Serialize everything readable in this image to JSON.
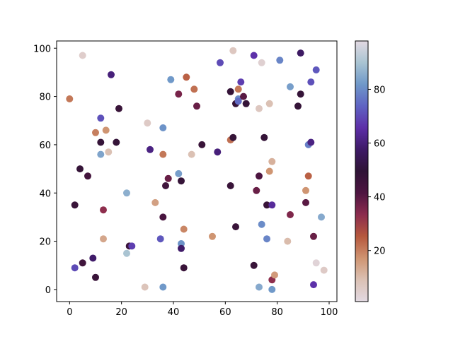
{
  "chart_data": {
    "type": "scatter",
    "title": "",
    "xlabel": "",
    "ylabel": "",
    "xlim": [
      -5,
      103
    ],
    "ylim": [
      -5,
      103
    ],
    "x_ticks": [
      "0",
      "20",
      "40",
      "60",
      "80",
      "100"
    ],
    "y_ticks": [
      "0",
      "20",
      "40",
      "60",
      "80",
      "100"
    ],
    "grid": false,
    "colormap": "twilight_shifted",
    "colorbar": {
      "range": [
        1,
        98
      ],
      "ticks": [
        "20",
        "40",
        "60",
        "80"
      ],
      "stops": [
        "#e2d9e2",
        "#dbc1b4",
        "#cf9471",
        "#b6583d",
        "#8c2c4e",
        "#4e1541",
        "#2f1436",
        "#3e1a66",
        "#5d2fa8",
        "#5f63c3",
        "#6f98c9",
        "#a9c4d2",
        "#e2d9e2"
      ]
    },
    "points": [
      {
        "x": 0,
        "y": 79,
        "c": 21
      },
      {
        "x": 2,
        "y": 35,
        "c": 47
      },
      {
        "x": 2,
        "y": 9,
        "c": 70
      },
      {
        "x": 4,
        "y": 50,
        "c": 48
      },
      {
        "x": 5,
        "y": 11,
        "c": 45
      },
      {
        "x": 5,
        "y": 97,
        "c": 5
      },
      {
        "x": 7,
        "y": 47,
        "c": 44
      },
      {
        "x": 9,
        "y": 13,
        "c": 58
      },
      {
        "x": 10,
        "y": 65,
        "c": 20
      },
      {
        "x": 10,
        "y": 5,
        "c": 47
      },
      {
        "x": 12,
        "y": 71,
        "c": 71
      },
      {
        "x": 12,
        "y": 61,
        "c": 48
      },
      {
        "x": 12,
        "y": 56,
        "c": 84
      },
      {
        "x": 13,
        "y": 33,
        "c": 33
      },
      {
        "x": 13,
        "y": 21,
        "c": 14
      },
      {
        "x": 14,
        "y": 66,
        "c": 17
      },
      {
        "x": 15,
        "y": 57,
        "c": 9
      },
      {
        "x": 16,
        "y": 89,
        "c": 60
      },
      {
        "x": 18,
        "y": 61,
        "c": 48
      },
      {
        "x": 19,
        "y": 75,
        "c": 47
      },
      {
        "x": 22,
        "y": 40,
        "c": 86
      },
      {
        "x": 22,
        "y": 15,
        "c": 90
      },
      {
        "x": 23,
        "y": 18,
        "c": 46
      },
      {
        "x": 24,
        "y": 18,
        "c": 68
      },
      {
        "x": 29,
        "y": 1,
        "c": 8
      },
      {
        "x": 30,
        "y": 69,
        "c": 6
      },
      {
        "x": 31,
        "y": 58,
        "c": 61
      },
      {
        "x": 33,
        "y": 36,
        "c": 15
      },
      {
        "x": 35,
        "y": 21,
        "c": 72
      },
      {
        "x": 36,
        "y": 67,
        "c": 81
      },
      {
        "x": 36,
        "y": 56,
        "c": 21
      },
      {
        "x": 36,
        "y": 30,
        "c": 43
      },
      {
        "x": 36,
        "y": 1,
        "c": 82
      },
      {
        "x": 37,
        "y": 43,
        "c": 45
      },
      {
        "x": 38,
        "y": 46,
        "c": 38
      },
      {
        "x": 39,
        "y": 87,
        "c": 82
      },
      {
        "x": 42,
        "y": 81,
        "c": 36
      },
      {
        "x": 42,
        "y": 48,
        "c": 83
      },
      {
        "x": 43,
        "y": 45,
        "c": 48
      },
      {
        "x": 43,
        "y": 19,
        "c": 81
      },
      {
        "x": 43,
        "y": 17,
        "c": 58
      },
      {
        "x": 44,
        "y": 25,
        "c": 19
      },
      {
        "x": 44,
        "y": 9,
        "c": 47
      },
      {
        "x": 45,
        "y": 88,
        "c": 24
      },
      {
        "x": 47,
        "y": 56,
        "c": 9
      },
      {
        "x": 48,
        "y": 83,
        "c": 22
      },
      {
        "x": 49,
        "y": 76,
        "c": 38
      },
      {
        "x": 51,
        "y": 60,
        "c": 47
      },
      {
        "x": 55,
        "y": 22,
        "c": 17
      },
      {
        "x": 57,
        "y": 57,
        "c": 60
      },
      {
        "x": 58,
        "y": 94,
        "c": 70
      },
      {
        "x": 62,
        "y": 82,
        "c": 48
      },
      {
        "x": 62,
        "y": 62,
        "c": 22
      },
      {
        "x": 62,
        "y": 43,
        "c": 47
      },
      {
        "x": 63,
        "y": 99,
        "c": 7
      },
      {
        "x": 63,
        "y": 63,
        "c": 48
      },
      {
        "x": 64,
        "y": 77,
        "c": 48
      },
      {
        "x": 64,
        "y": 26,
        "c": 47
      },
      {
        "x": 65,
        "y": 83,
        "c": 21
      },
      {
        "x": 65,
        "y": 79,
        "c": 80
      },
      {
        "x": 65,
        "y": 78,
        "c": 75
      },
      {
        "x": 66,
        "y": 86,
        "c": 68
      },
      {
        "x": 67,
        "y": 80,
        "c": 40
      },
      {
        "x": 68,
        "y": 77,
        "c": 48
      },
      {
        "x": 71,
        "y": 97,
        "c": 66
      },
      {
        "x": 71,
        "y": 10,
        "c": 47
      },
      {
        "x": 72,
        "y": 41,
        "c": 38
      },
      {
        "x": 73,
        "y": 75,
        "c": 7
      },
      {
        "x": 73,
        "y": 47,
        "c": 42
      },
      {
        "x": 73,
        "y": 1,
        "c": 85
      },
      {
        "x": 74,
        "y": 94,
        "c": 4
      },
      {
        "x": 74,
        "y": 27,
        "c": 80
      },
      {
        "x": 75,
        "y": 63,
        "c": 48
      },
      {
        "x": 76,
        "y": 35,
        "c": 47
      },
      {
        "x": 76,
        "y": 21,
        "c": 79
      },
      {
        "x": 77,
        "y": 77,
        "c": 9
      },
      {
        "x": 77,
        "y": 49,
        "c": 17
      },
      {
        "x": 78,
        "y": 53,
        "c": 12
      },
      {
        "x": 78,
        "y": 35,
        "c": 64
      },
      {
        "x": 78,
        "y": 4,
        "c": 33
      },
      {
        "x": 78,
        "y": 0,
        "c": 82
      },
      {
        "x": 79,
        "y": 6,
        "c": 16
      },
      {
        "x": 81,
        "y": 95,
        "c": 79
      },
      {
        "x": 84,
        "y": 20,
        "c": 10
      },
      {
        "x": 85,
        "y": 84,
        "c": 83
      },
      {
        "x": 85,
        "y": 31,
        "c": 35
      },
      {
        "x": 88,
        "y": 76,
        "c": 48
      },
      {
        "x": 89,
        "y": 98,
        "c": 57
      },
      {
        "x": 89,
        "y": 81,
        "c": 48
      },
      {
        "x": 91,
        "y": 41,
        "c": 17
      },
      {
        "x": 91,
        "y": 36,
        "c": 40
      },
      {
        "x": 92,
        "y": 60,
        "c": 78
      },
      {
        "x": 92,
        "y": 47,
        "c": 24
      },
      {
        "x": 93,
        "y": 86,
        "c": 71
      },
      {
        "x": 93,
        "y": 61,
        "c": 61
      },
      {
        "x": 94,
        "y": 22,
        "c": 38
      },
      {
        "x": 94,
        "y": 2,
        "c": 66
      },
      {
        "x": 95,
        "y": 91,
        "c": 72
      },
      {
        "x": 95,
        "y": 11,
        "c": 3
      },
      {
        "x": 97,
        "y": 30,
        "c": 85
      },
      {
        "x": 98,
        "y": 8,
        "c": 6
      }
    ]
  }
}
